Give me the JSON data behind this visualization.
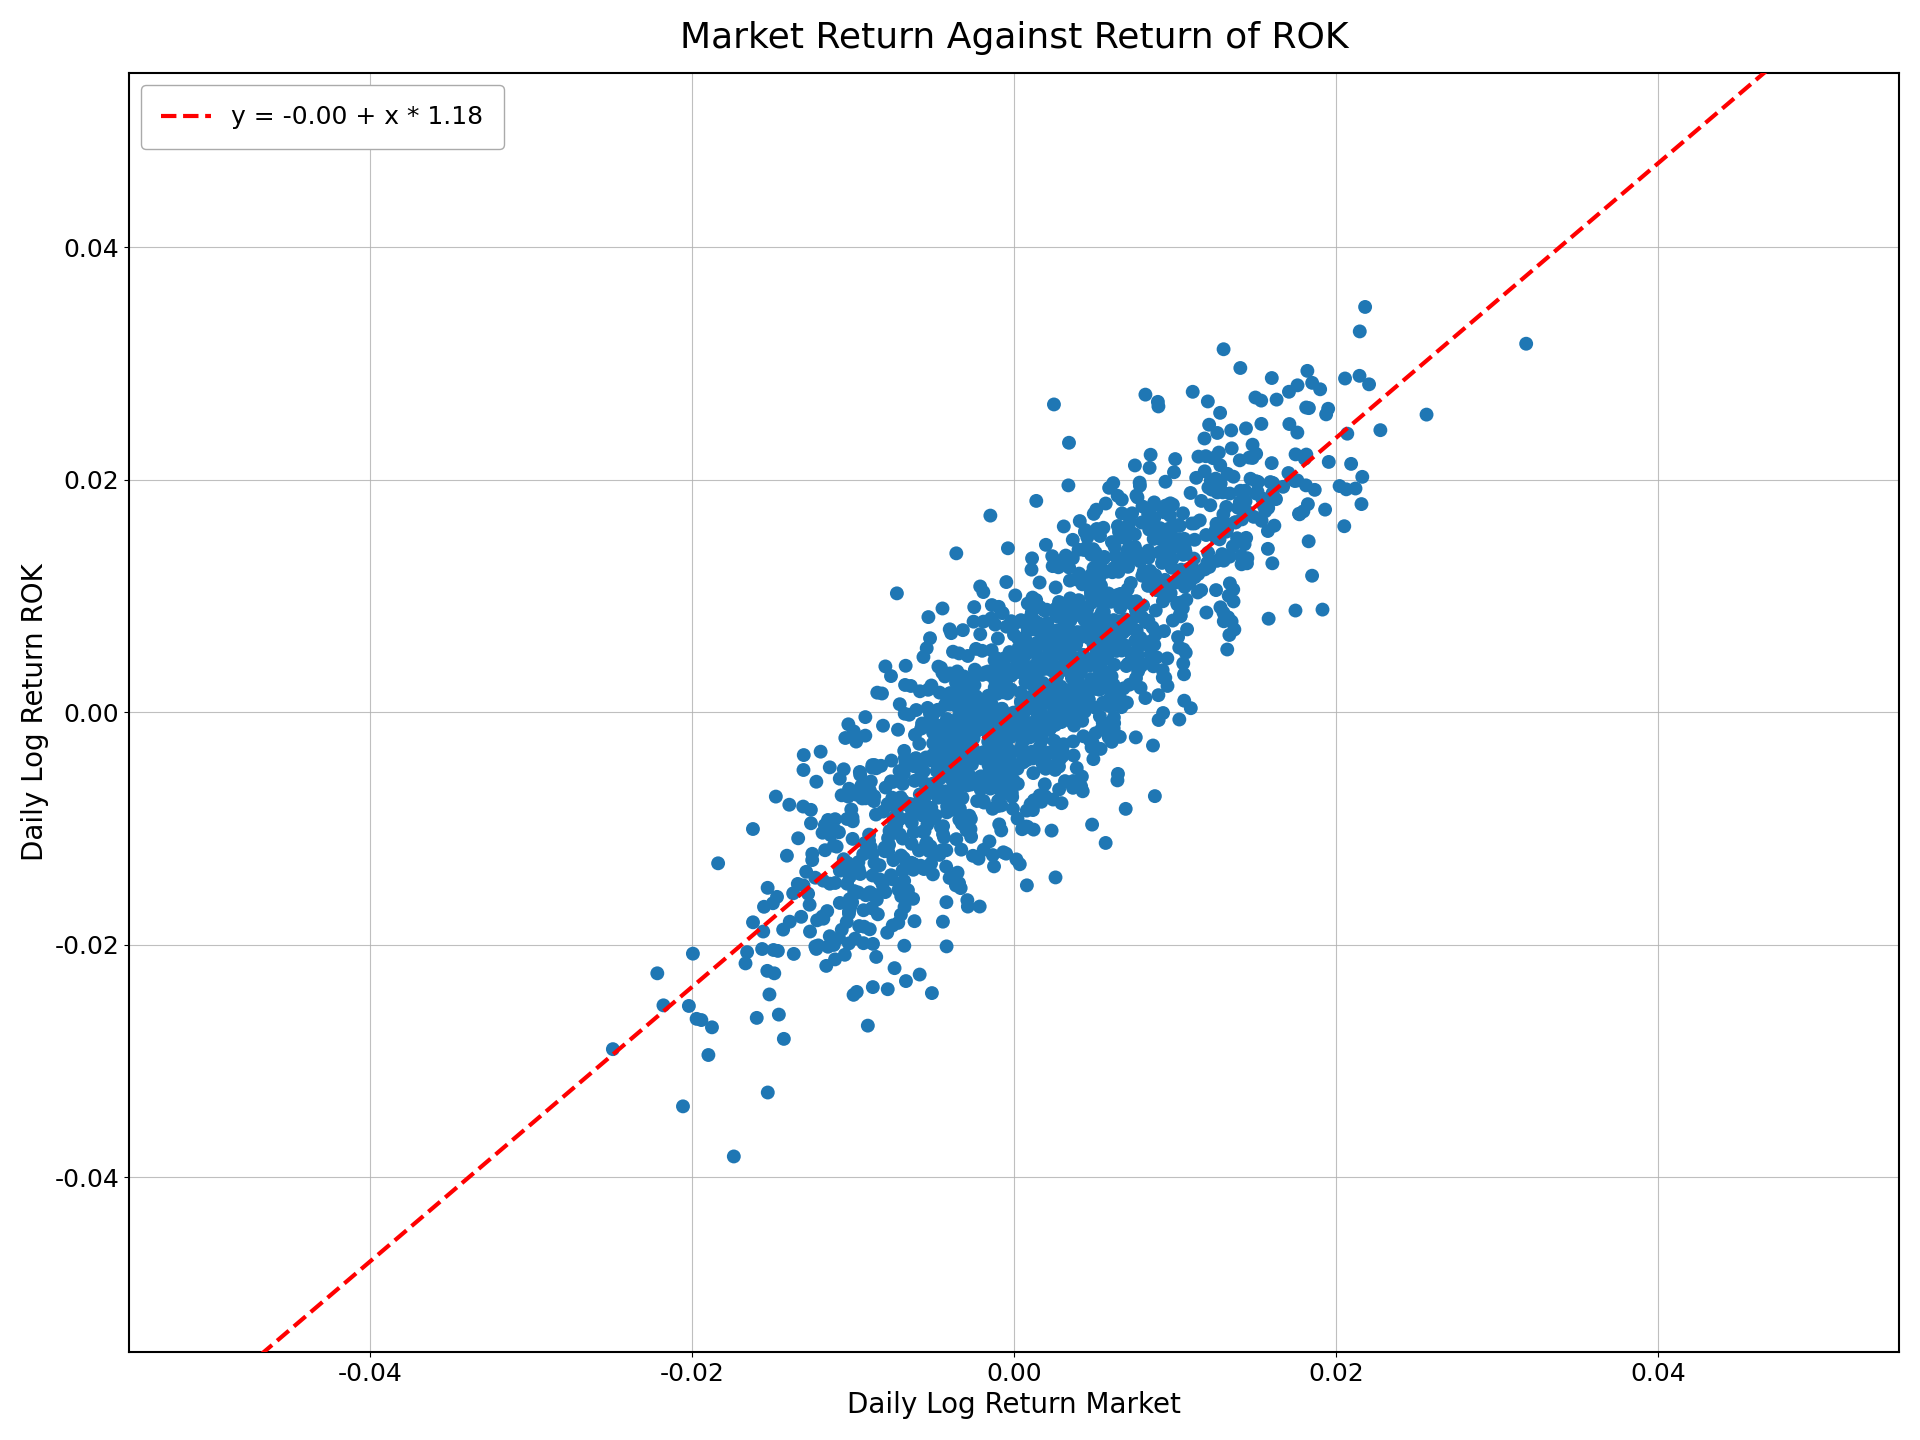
{
  "title": "Market Return Against Return of ROK",
  "xlabel": "Daily Log Return Market",
  "ylabel": "Daily Log Return ROK",
  "legend_label": "y = -0.00 + x * 1.18",
  "intercept": -0.0,
  "slope": 1.18,
  "xlim": [
    -0.055,
    0.055
  ],
  "ylim": [
    -0.055,
    0.055
  ],
  "xticks": [
    -0.04,
    -0.02,
    0.0,
    0.02,
    0.04
  ],
  "yticks": [
    -0.04,
    -0.02,
    0.0,
    0.02,
    0.04
  ],
  "scatter_color": "#1f77b4",
  "line_color": "#ff0000",
  "marker_size": 100,
  "alpha": 1.0,
  "title_fontsize": 26,
  "label_fontsize": 20,
  "tick_fontsize": 18,
  "legend_fontsize": 18,
  "seed": 42,
  "n_points": 1500,
  "market_std": 0.008,
  "noise_std": 0.006
}
